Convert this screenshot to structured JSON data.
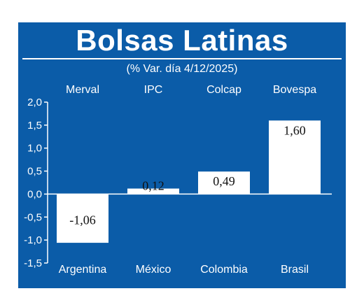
{
  "chart_data": {
    "type": "bar",
    "title": "Bolsas Latinas",
    "subtitle": "(% Var. día 4/12/2025)",
    "indices": [
      "Merval",
      "IPC",
      "Colcap",
      "Bovespa"
    ],
    "categories": [
      "Argentina",
      "México",
      "Colombia",
      "Brasil"
    ],
    "values": [
      -1.06,
      0.12,
      0.49,
      1.6
    ],
    "value_labels": [
      "-1,06",
      "0,12",
      "0,49",
      "1,60"
    ],
    "ylim": [
      -1.5,
      2.0
    ],
    "yticks": [
      2.0,
      1.5,
      1.0,
      0.5,
      0.0,
      -0.5,
      -1.0,
      -1.5
    ],
    "ytick_labels": [
      "2,0",
      "1,5",
      "1,0",
      "0,5",
      "0,0",
      "-0,5",
      "-1,0",
      "-1,5"
    ],
    "grid": false,
    "colors": {
      "background": "#0b5ca8",
      "bar": "#ffffff",
      "text": "#ffffff"
    }
  }
}
